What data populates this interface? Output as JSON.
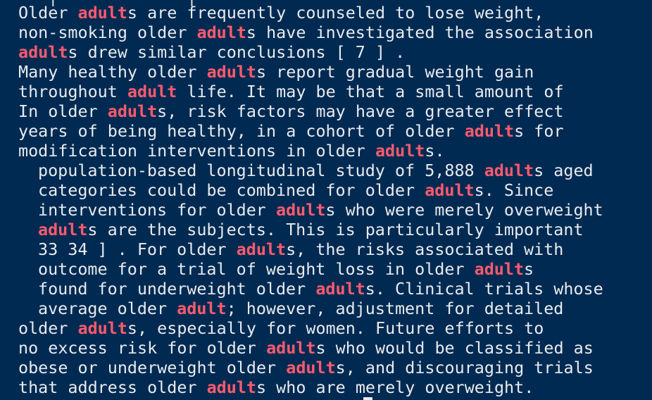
{
  "terminal": {
    "keyword_color": "#ff5b6e",
    "text_color": "#e8ebee",
    "background_color": "#002a52",
    "lines": [
      {
        "segments": [
          {
            "t": "Older ",
            "k": false
          },
          {
            "t": "adult",
            "k": true
          },
          {
            "t": "s are frequently counseled to lose weight,",
            "k": false
          }
        ]
      },
      {
        "segments": [
          {
            "t": "non-smoking older ",
            "k": false
          },
          {
            "t": "adult",
            "k": true
          },
          {
            "t": "s have investigated the association",
            "k": false
          }
        ]
      },
      {
        "segments": [
          {
            "t": "adult",
            "k": true
          },
          {
            "t": "s drew similar conclusions [ 7 ] .",
            "k": false
          }
        ]
      },
      {
        "segments": [
          {
            "t": "Many healthy older ",
            "k": false
          },
          {
            "t": "adult",
            "k": true
          },
          {
            "t": "s report gradual weight gain",
            "k": false
          }
        ]
      },
      {
        "segments": [
          {
            "t": "throughout ",
            "k": false
          },
          {
            "t": "adult",
            "k": true
          },
          {
            "t": " life. It may be that a small amount of",
            "k": false
          }
        ]
      },
      {
        "segments": [
          {
            "t": "In older ",
            "k": false
          },
          {
            "t": "adult",
            "k": true
          },
          {
            "t": "s, risk factors may have a greater effect",
            "k": false
          }
        ]
      },
      {
        "segments": [
          {
            "t": "years of being healthy, in a cohort of older ",
            "k": false
          },
          {
            "t": "adult",
            "k": true
          },
          {
            "t": "s for",
            "k": false
          }
        ]
      },
      {
        "segments": [
          {
            "t": "modification interventions in older ",
            "k": false
          },
          {
            "t": "adult",
            "k": true
          },
          {
            "t": "s.",
            "k": false
          }
        ]
      },
      {
        "segments": [
          {
            "t": "population-based longitudinal study of 5,888 ",
            "k": false
          },
          {
            "t": "adult",
            "k": true
          },
          {
            "t": "s aged",
            "k": false
          }
        ]
      },
      {
        "segments": [
          {
            "t": "categories could be combined for older ",
            "k": false
          },
          {
            "t": "adult",
            "k": true
          },
          {
            "t": "s. Since",
            "k": false
          }
        ]
      },
      {
        "segments": [
          {
            "t": "interventions for older ",
            "k": false
          },
          {
            "t": "adult",
            "k": true
          },
          {
            "t": "s who were merely overweight",
            "k": false
          }
        ]
      },
      {
        "segments": [
          {
            "t": "adult",
            "k": true
          },
          {
            "t": "s are the subjects. This is particularly important",
            "k": false
          }
        ]
      },
      {
        "segments": [
          {
            "t": "33 34 ] . For older ",
            "k": false
          },
          {
            "t": "adult",
            "k": true
          },
          {
            "t": "s, the risks associated with",
            "k": false
          }
        ]
      },
      {
        "segments": [
          {
            "t": "outcome for a trial of weight loss in older ",
            "k": false
          },
          {
            "t": "adult",
            "k": true
          },
          {
            "t": "s",
            "k": false
          }
        ]
      },
      {
        "segments": [
          {
            "t": "found for underweight older ",
            "k": false
          },
          {
            "t": "adult",
            "k": true
          },
          {
            "t": "s. Clinical trials whose",
            "k": false
          }
        ]
      },
      {
        "segments": [
          {
            "t": "average older ",
            "k": false
          },
          {
            "t": "adult",
            "k": true
          },
          {
            "t": "; however, adjustment for detailed",
            "k": false
          }
        ]
      },
      {
        "segments": [
          {
            "t": "older ",
            "k": false
          },
          {
            "t": "adult",
            "k": true
          },
          {
            "t": "s, especially for women. Future efforts to",
            "k": false
          }
        ]
      },
      {
        "segments": [
          {
            "t": "no excess risk for older ",
            "k": false
          },
          {
            "t": "adult",
            "k": true
          },
          {
            "t": "s who would be classified as",
            "k": false
          }
        ]
      },
      {
        "segments": [
          {
            "t": "obese or underweight older ",
            "k": false
          },
          {
            "t": "adult",
            "k": true
          },
          {
            "t": "s, and discouraging trials",
            "k": false
          }
        ]
      },
      {
        "segments": [
          {
            "t": "that address older ",
            "k": false
          },
          {
            "t": "adult",
            "k": true
          },
          {
            "t": "s who are merely overweight.",
            "k": false
          }
        ]
      }
    ]
  }
}
